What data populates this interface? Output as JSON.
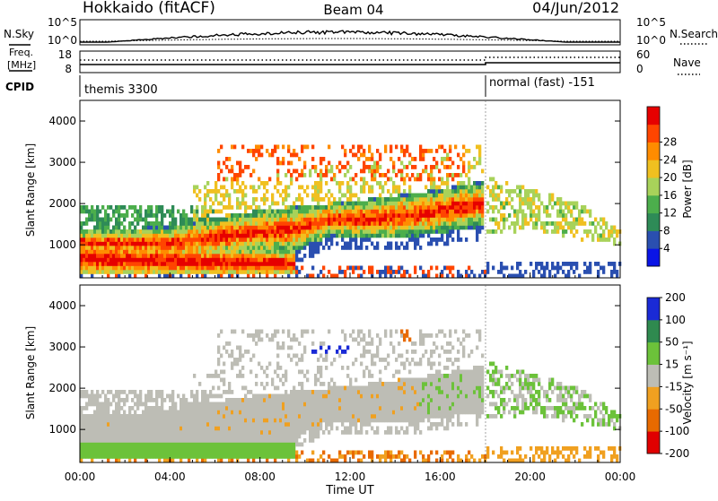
{
  "header": {
    "station": "Hokkaido (fitACF)",
    "beam": "Beam 04",
    "date": "04/Jun/2012"
  },
  "noise_panel": {
    "left_label": "N.Sky",
    "right_label": "N.Search",
    "left_ticks": [
      "10^5",
      "10^0"
    ],
    "right_ticks": [
      "10^5",
      "10^0"
    ]
  },
  "freq_panel": {
    "left_label_1": "Freq.",
    "left_label_2": "[MHz]",
    "right_label": "Nave",
    "left_ticks": [
      "18",
      "8"
    ],
    "right_ticks": [
      "60",
      "0"
    ]
  },
  "cpid_panel": {
    "label": "CPID",
    "mode_1": "themis 3300",
    "mode_2": "normal (fast) -151"
  },
  "colors": {
    "power_scale": [
      "#0a14e6",
      "#2a4fb0",
      "#2e8b57",
      "#4cae4c",
      "#a8d25a",
      "#f0c020",
      "#ff8c00",
      "#ff4500",
      "#e60000"
    ],
    "velocity_scale": [
      "#1a2ad6",
      "#2f8a4f",
      "#6cc23a",
      "#bdbdb5",
      "#f0a020",
      "#e86a00",
      "#e00000"
    ]
  },
  "chart_data": [
    {
      "type": "heatmap",
      "name": "power",
      "ylabel": "Slant Range [km]",
      "yticks": [
        "1000",
        "2000",
        "3000",
        "4000"
      ],
      "ylim": [
        200,
        4500
      ],
      "colorbar_label": "Power [dB]",
      "colorbar_ticks": [
        "4",
        "8",
        "12",
        "16",
        "20",
        "24",
        "28"
      ],
      "colorbar_range": [
        0,
        32
      ]
    },
    {
      "type": "heatmap",
      "name": "velocity",
      "ylabel": "Slant Range [km]",
      "yticks": [
        "1000",
        "2000",
        "3000",
        "4000"
      ],
      "ylim": [
        200,
        4500
      ],
      "colorbar_label": "Velocity [m s⁻¹]",
      "colorbar_ticks": [
        "200",
        "100",
        "50",
        "15",
        "-15",
        "-50",
        "-100",
        "-200"
      ]
    }
  ],
  "x_axis": {
    "label": "Time UT",
    "ticks": [
      "00:00",
      "04:00",
      "08:00",
      "12:00",
      "16:00",
      "20:00",
      "00:00"
    ],
    "xlim_hours": [
      0,
      24
    ]
  }
}
